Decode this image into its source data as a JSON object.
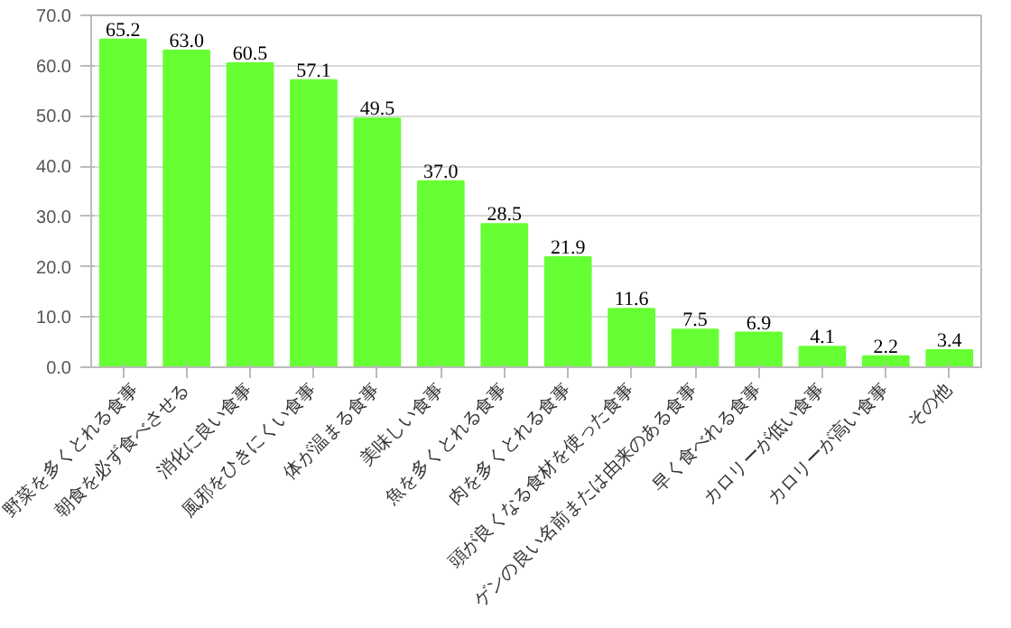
{
  "chart_data": {
    "type": "bar",
    "categories": [
      "野菜を多くとれる食事",
      "朝食を必ず食べさせる",
      "消化に良い食事",
      "風邪をひきにくい食事",
      "体が温まる食事",
      "美味しい食事",
      "魚を多くとれる食事",
      "肉を多くとれる食事",
      "頭が良くなる食材を使った食事",
      "ゲンの良い名前または由来のある食事",
      "早く食べれる食事",
      "カロリーが低い食事",
      "カロリーが高い食事",
      "その他"
    ],
    "values": [
      65.2,
      63.0,
      60.5,
      57.1,
      49.5,
      37.0,
      28.5,
      21.9,
      11.6,
      7.5,
      6.9,
      4.1,
      2.2,
      3.4
    ],
    "value_labels": [
      "65.2",
      "63.0",
      "60.5",
      "57.1",
      "49.5",
      "37.0",
      "28.5",
      "21.9",
      "11.6",
      "7.5",
      "6.9",
      "4.1",
      "2.2",
      "3.4"
    ],
    "color": "#66ff33",
    "ylim": [
      0,
      70
    ],
    "yticks": [
      {
        "value": 0,
        "label": "0.0"
      },
      {
        "value": 10,
        "label": "10.0"
      },
      {
        "value": 20,
        "label": "20.0"
      },
      {
        "value": 30,
        "label": "30.0"
      },
      {
        "value": 40,
        "label": "40.0"
      },
      {
        "value": 50,
        "label": "50.0"
      },
      {
        "value": 60,
        "label": "60.0"
      },
      {
        "value": 70,
        "label": "70.0"
      }
    ],
    "grid": "y"
  }
}
